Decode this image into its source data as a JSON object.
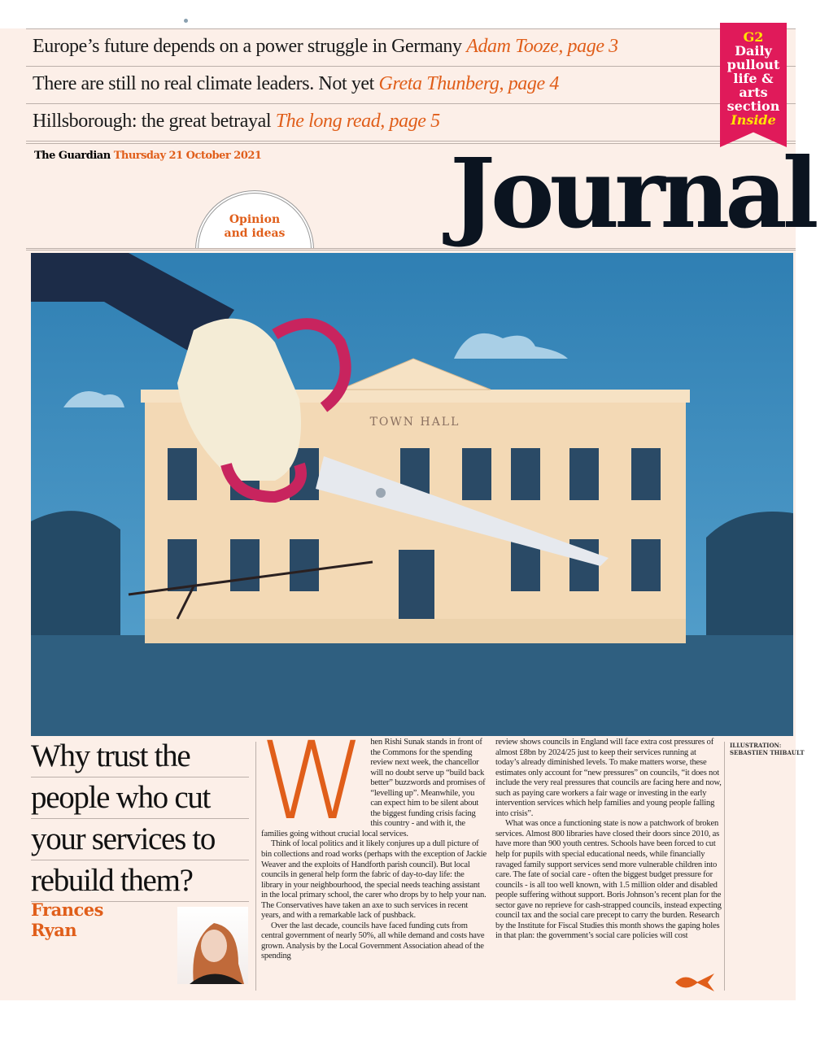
{
  "teasers": [
    {
      "text": "Europe’s future depends on a power struggle in Germany",
      "ref": "Adam Tooze, page 3"
    },
    {
      "text": "There are still no real climate leaders. Not yet",
      "ref": "Greta Thunberg, page 4"
    },
    {
      "text": "Hillsborough: the great betrayal",
      "ref": "The long read, page 5"
    }
  ],
  "ribbon": {
    "g2": "G2",
    "lines": [
      "Daily",
      "pullout",
      "life &",
      "arts",
      "section"
    ],
    "inside": "Inside"
  },
  "dateline": {
    "paper": "The Guardian",
    "date": "Thursday 21 October 2021"
  },
  "masthead": "Journal",
  "section_badge": {
    "line1": "Opinion",
    "line2": "and ideas"
  },
  "illustration": {
    "sign": "TOWN HALL"
  },
  "article": {
    "headline": [
      "Why trust the",
      "people who cut",
      "your services to",
      "rebuild them?"
    ],
    "author": [
      "Frances",
      "Ryan"
    ],
    "dropcap": "W",
    "paragraphs": [
      "hen Rishi Sunak stands in front of the Commons for the spending review next week, the chancellor will no doubt serve up “build back better” buzzwords and promises of “levelling up”. Meanwhile, you can expect him to be silent about the biggest funding crisis facing this country - and with it, the families going without crucial local services.",
      "Think of local politics and it likely conjures up a dull picture of bin collections and road works (perhaps with the exception of Jackie Weaver and the exploits of Handforth parish council). But local councils in general help form the fabric of day-to-day life: the library in your neighbourhood, the special needs teaching assistant in the local primary school, the carer who drops by to help your nan. The Conservatives have taken an axe to such services in recent years, and with a remarkable lack of pushback.",
      "Over the last decade, councils have faced funding cuts from central government of nearly 50%, all while demand and costs have grown. Analysis by the Local Government Association ahead of the spending"
    ],
    "paragraphs2": [
      "review shows councils in England will face extra cost pressures of almost £8bn by 2024/25 just to keep their services running at today’s already diminished levels. To make matters worse, these estimates only account for “new pressures” on councils, “it does not include the very real pressures that councils are facing here and now, such as paying care workers a fair wage or investing in the early intervention services which help families and young people falling into crisis”.",
      "What was once a functioning state is now a patchwork of broken services. Almost 800 libraries have closed their doors since 2010, as have more than 900 youth centres. Schools have been forced to cut help for pupils with special educational needs, while financially ravaged family support services send more vulnerable children into care. The fate of social care - often the biggest budget pressure for councils - is all too well known, with 1.5 million older and disabled people suffering without support. Boris Johnson’s recent plan for the sector gave no reprieve for cash-strapped councils, instead expecting council tax and the social care precept to carry the burden. Research by the Institute for Fiscal Studies this month shows the gaping holes in that plan: the government’s social care policies will cost"
    ],
    "credit": [
      "ILLUSTRATION:",
      "SEBASTIEN THIBAULT"
    ],
    "continue_icon": "turn-arrow-icon"
  },
  "colors": {
    "accent": "#e05e1a",
    "ribbon": "#e01a5a",
    "paper": "#fcefe8",
    "sky": "#3f8fc0"
  }
}
